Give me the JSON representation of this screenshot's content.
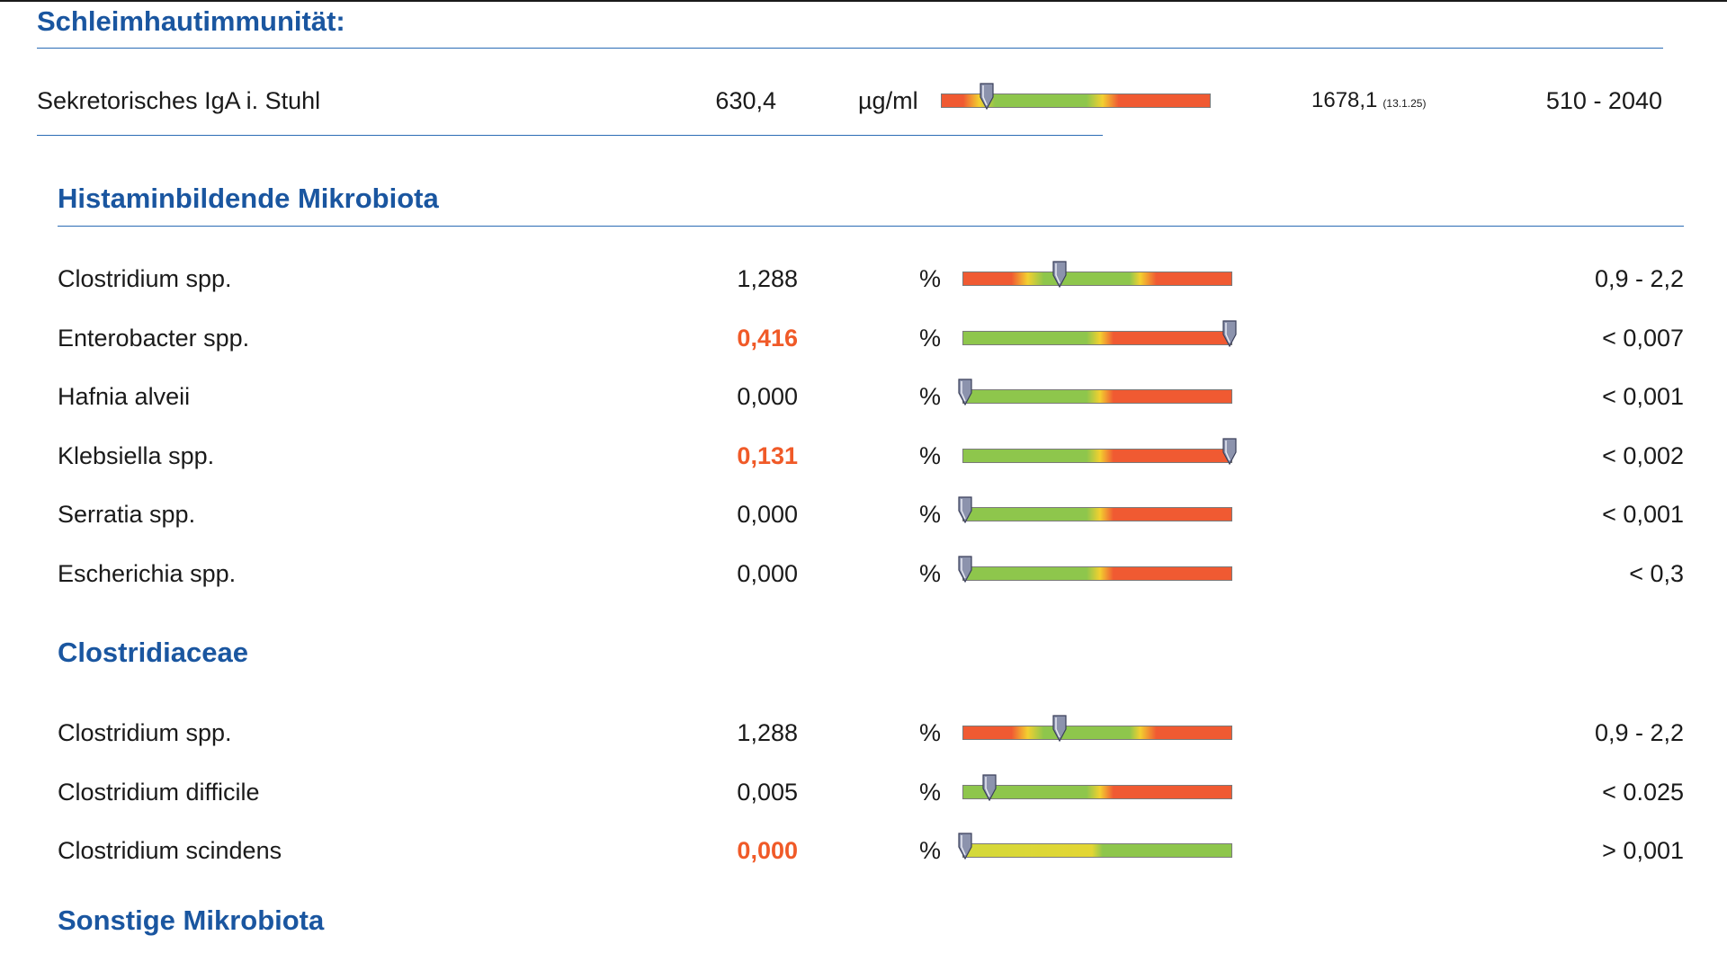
{
  "colors": {
    "heading": "#1a56a0",
    "flag": "#f05a28",
    "rule": "#2b6cb5"
  },
  "sections": {
    "mucosal": {
      "title": "Schleimhautimmunität:",
      "rows": [
        {
          "name": "Sekretorisches IgA i. Stuhl",
          "value": "630,4",
          "unit": "µg/ml",
          "previous": "1678,1",
          "previous_date": "(13.1.25)",
          "range": "510 - 2040",
          "marker_fraction": 0.17,
          "flag": false
        }
      ]
    },
    "histamine": {
      "title": "Histaminbildende Mikrobiota",
      "rows": [
        {
          "name": "Clostridium spp.",
          "value": "1,288",
          "unit": "%",
          "range": "0,9 - 2,2",
          "marker_fraction": 0.36,
          "flag": false
        },
        {
          "name": "Enterobacter spp.",
          "value": "0,416",
          "unit": "%",
          "range": "< 0,007",
          "marker_fraction": 1.0,
          "flag": true
        },
        {
          "name": "Hafnia alveii",
          "value": "0,000",
          "unit": "%",
          "range": "< 0,001",
          "marker_fraction": 0.0,
          "flag": false
        },
        {
          "name": "Klebsiella spp.",
          "value": "0,131",
          "unit": "%",
          "range": "< 0,002",
          "marker_fraction": 1.0,
          "flag": true
        },
        {
          "name": "Serratia spp.",
          "value": "0,000",
          "unit": "%",
          "range": "< 0,001",
          "marker_fraction": 0.0,
          "flag": false
        },
        {
          "name": "Escherichia spp.",
          "value": "0,000",
          "unit": "%",
          "range": "< 0,3",
          "marker_fraction": 0.0,
          "flag": false
        }
      ]
    },
    "clostridiaceae": {
      "title": "Clostridiaceae",
      "rows": [
        {
          "name": "Clostridium spp.",
          "value": "1,288",
          "unit": "%",
          "range": "0,9 - 2,2",
          "marker_fraction": 0.36,
          "flag": false
        },
        {
          "name": "Clostridium difficile",
          "value": "0,005",
          "unit": "%",
          "range": "< 0.025",
          "marker_fraction": 0.1,
          "flag": false
        },
        {
          "name": "Clostridium scindens",
          "value": "0,000",
          "unit": "%",
          "range": "> 0,001",
          "marker_fraction": 0.0,
          "flag": true
        }
      ]
    },
    "other": {
      "title": "Sonstige Mikrobiota"
    }
  }
}
